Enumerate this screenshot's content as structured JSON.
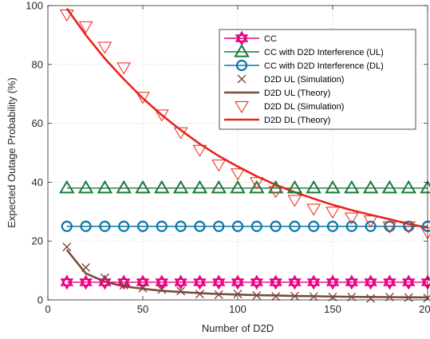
{
  "chart_data": {
    "type": "line",
    "title": "",
    "xlabel": "Number of D2D",
    "ylabel": "Expected Outage Probability (%)",
    "xlim": [
      0,
      200
    ],
    "ylim": [
      0,
      100
    ],
    "xticks": [
      0,
      50,
      100,
      150,
      200
    ],
    "yticks": [
      0,
      20,
      40,
      60,
      80,
      100
    ],
    "grid": true,
    "legend_position": "top-right",
    "x": [
      10,
      20,
      30,
      40,
      50,
      60,
      70,
      80,
      90,
      100,
      110,
      120,
      130,
      140,
      150,
      160,
      170,
      180,
      190,
      200
    ],
    "series": [
      {
        "name": "CC",
        "color": "#e6007e",
        "marker": "hexagram",
        "line": true,
        "values": [
          6,
          6,
          6,
          6,
          6,
          6,
          6,
          6,
          6,
          6,
          6,
          6,
          6,
          6,
          6,
          6,
          6,
          6,
          6,
          6
        ]
      },
      {
        "name": "CC with D2D Interference (UL)",
        "color": "#1a7a3a",
        "marker": "triangle-up",
        "line": true,
        "values": [
          38,
          38,
          38,
          38,
          38,
          38,
          38,
          38,
          38,
          38,
          38,
          38,
          38,
          38,
          38,
          38,
          38,
          38,
          38,
          38
        ]
      },
      {
        "name": "CC with D2D Interference (DL)",
        "color": "#0a76a8",
        "marker": "circle",
        "line": true,
        "values": [
          25,
          25,
          25,
          25,
          25,
          25,
          25,
          25,
          25,
          25,
          25,
          25,
          25,
          25,
          25,
          25,
          25,
          25,
          25,
          25
        ]
      },
      {
        "name": "D2D UL (Simulation)",
        "color": "#7a4b3a",
        "marker": "x",
        "line": false,
        "values": [
          18,
          11,
          7.5,
          5,
          4,
          3.5,
          3,
          2,
          1.8,
          2,
          1.5,
          1.2,
          1.3,
          1.1,
          1,
          1,
          0.5,
          1,
          0.8,
          0.6
        ]
      },
      {
        "name": "D2D UL (Theory)",
        "color": "#7a4b3a",
        "marker": "none",
        "line": true,
        "values": [
          17,
          9,
          6.2,
          4.6,
          3.8,
          3.1,
          2.7,
          2.3,
          2.0,
          1.8,
          1.6,
          1.5,
          1.35,
          1.25,
          1.15,
          1.05,
          1.0,
          0.95,
          0.9,
          0.85
        ]
      },
      {
        "name": "D2D DL (Simulation)",
        "color": "#e8241c",
        "marker": "triangle-down",
        "line": false,
        "values": [
          97,
          93,
          86,
          79,
          69,
          63,
          57,
          51,
          46,
          43,
          40,
          37,
          34,
          31,
          30,
          28,
          27,
          25,
          25,
          23
        ]
      },
      {
        "name": "D2D DL (Theory)",
        "color": "#e8241c",
        "marker": "none",
        "line": true,
        "values": [
          99,
          90,
          82,
          75,
          68.5,
          62.8,
          57.7,
          53,
          48.9,
          45.3,
          42,
          39.1,
          36.6,
          34.4,
          32.3,
          30.5,
          28.9,
          27.4,
          25.8,
          24.6
        ]
      }
    ]
  }
}
